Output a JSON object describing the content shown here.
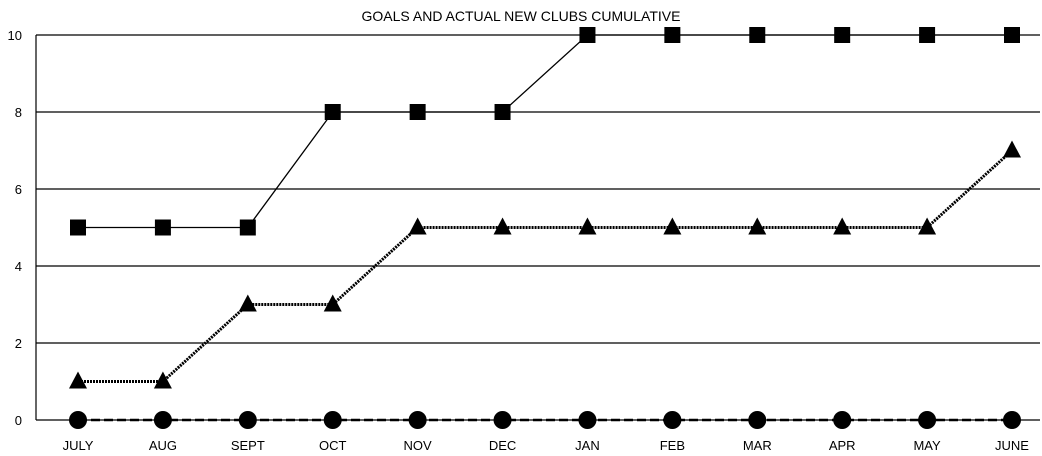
{
  "chart_data": {
    "type": "line",
    "title": "GOALS AND ACTUAL NEW CLUBS CUMULATIVE",
    "xlabel": "",
    "ylabel": "",
    "categories": [
      "JULY",
      "AUG",
      "SEPT",
      "OCT",
      "NOV",
      "DEC",
      "JAN",
      "FEB",
      "MAR",
      "APR",
      "MAY",
      "JUNE"
    ],
    "ylim": [
      0,
      10
    ],
    "yticks": [
      0,
      2,
      4,
      6,
      8,
      10
    ],
    "grid": true,
    "legend": "none",
    "series": [
      {
        "marker": "square",
        "line_style": "solid",
        "color": "#000000",
        "values": [
          5,
          5,
          5,
          8,
          8,
          8,
          10,
          10,
          10,
          10,
          10,
          10
        ]
      },
      {
        "marker": "triangle",
        "line_style": "dotted",
        "color": "#000000",
        "values": [
          1,
          1,
          3,
          3,
          5,
          5,
          5,
          5,
          5,
          5,
          5,
          7
        ]
      },
      {
        "marker": "circle",
        "line_style": "dashed",
        "color": "#000000",
        "values": [
          0,
          0,
          0,
          0,
          0,
          0,
          0,
          0,
          0,
          0,
          0,
          0
        ]
      }
    ]
  }
}
